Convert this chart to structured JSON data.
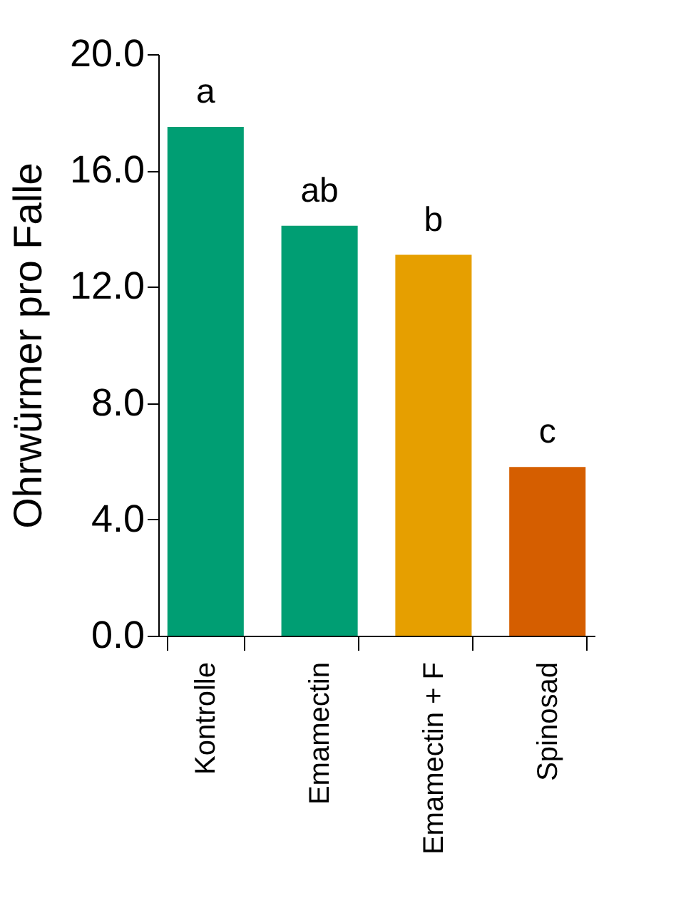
{
  "chart_data": {
    "type": "bar",
    "ylabel": "Ohrwürmer pro Falle",
    "categories": [
      "Kontrolle",
      "Emamectin",
      "Emamectin + F",
      "Spinosad"
    ],
    "values": [
      17.5,
      14.1,
      13.1,
      5.8
    ],
    "colors": [
      "#009e73",
      "#009e73",
      "#e69f00",
      "#d55e00"
    ],
    "ylim": [
      0,
      20
    ],
    "yticks": [
      {
        "value": 0,
        "label": "0.0"
      },
      {
        "value": 4,
        "label": "4.0"
      },
      {
        "value": 8,
        "label": "8.0"
      },
      {
        "value": 12,
        "label": "12.0"
      },
      {
        "value": 16,
        "label": "16.0"
      },
      {
        "value": 20,
        "label": "20.0"
      }
    ],
    "grid": false,
    "annotations": [
      {
        "text": "a",
        "x": "Kontrolle",
        "y": 17.5
      },
      {
        "text": "ab",
        "x": "Emamectin",
        "y": 14.1
      },
      {
        "text": "b",
        "x": "Emamectin + F",
        "y": 13.1
      },
      {
        "text": "c",
        "x": "Spinosad",
        "y": 5.8
      }
    ]
  }
}
